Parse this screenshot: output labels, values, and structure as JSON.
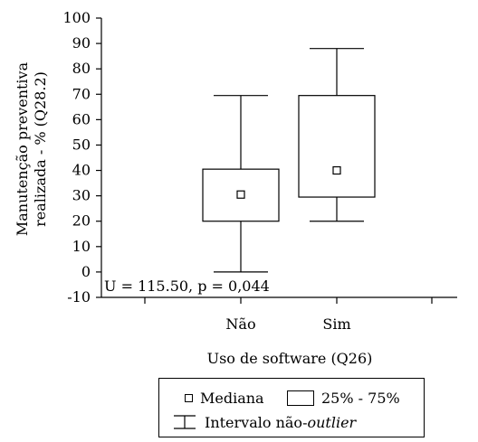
{
  "chart_data": {
    "type": "box",
    "ylabel_line1": "Manutenção preventiva",
    "ylabel_line2": "realizada - % (Q28.2)",
    "xlabel": "Uso de software (Q26)",
    "ylim": [
      -10,
      100
    ],
    "yticks": [
      "-10",
      "0",
      "10",
      "20",
      "30",
      "40",
      "50",
      "60",
      "70",
      "80",
      "90",
      "100"
    ],
    "categories": [
      "Não",
      "Sim"
    ],
    "boxes": [
      {
        "category": "Não",
        "whisker_low": 0,
        "q1": 20,
        "median": 30.5,
        "q3": 40.5,
        "whisker_high": 69.5
      },
      {
        "category": "Sim",
        "whisker_low": 20,
        "q1": 29.5,
        "median": 40,
        "q3": 69.5,
        "whisker_high": 88
      }
    ],
    "annotation": "U = 115.50, p = 0,044",
    "legend": {
      "median_label": "Mediana",
      "box_label": "25% - 75%",
      "whisker_label_prefix": "Intervalo não-",
      "whisker_label_italic": "outlier"
    }
  }
}
